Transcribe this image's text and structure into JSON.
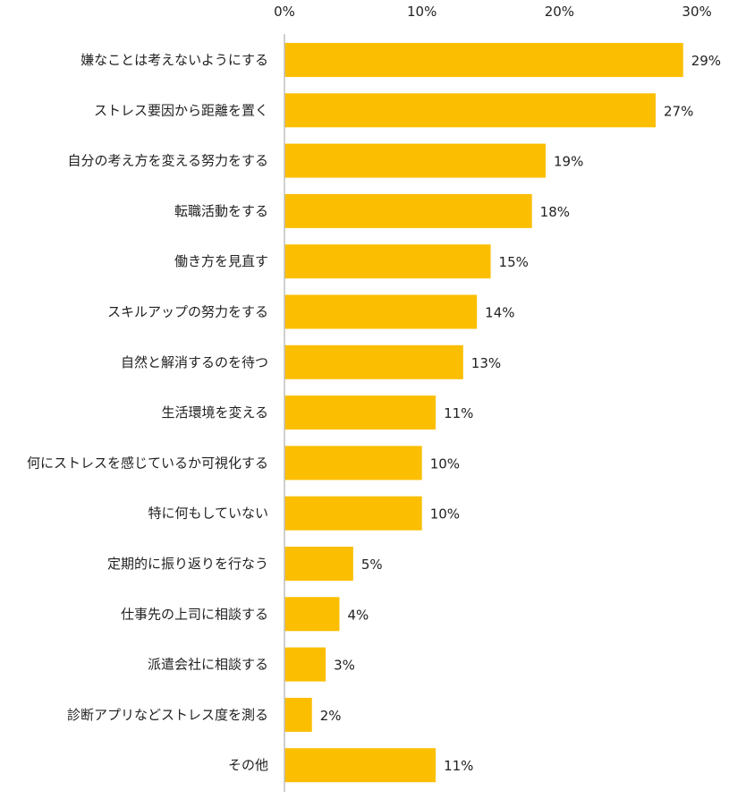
{
  "chart_data": {
    "type": "bar",
    "orientation": "horizontal",
    "categories": [
      "嫌なことは考えないようにする",
      "ストレス要因から距離を置く",
      "自分の考え方を変える努力をする",
      "転職活動をする",
      "働き方を見直す",
      "スキルアップの努力をする",
      "自然と解消するのを待つ",
      "生活環境を変える",
      "何にストレスを感じているか可視化する",
      "特に何もしていない",
      "定期的に振り返りを行なう",
      "仕事先の上司に相談する",
      "派遣会社に相談する",
      "診断アプリなどストレス度を測る",
      "その他"
    ],
    "values": [
      29,
      27,
      19,
      18,
      15,
      14,
      13,
      11,
      10,
      10,
      5,
      4,
      3,
      2,
      11
    ],
    "data_labels": [
      "29%",
      "27%",
      "19%",
      "18%",
      "15%",
      "14%",
      "13%",
      "11%",
      "10%",
      "10%",
      "5%",
      "4%",
      "3%",
      "2%",
      "11%"
    ],
    "xlim": [
      0,
      30
    ],
    "xticks": [
      0,
      10,
      20,
      30
    ],
    "xtick_labels": [
      "0%",
      "10%",
      "20%",
      "30%"
    ],
    "axis_position": "top",
    "grid": false,
    "bar_color": "#FBBE00",
    "axis_color": "#BFBFBF"
  }
}
